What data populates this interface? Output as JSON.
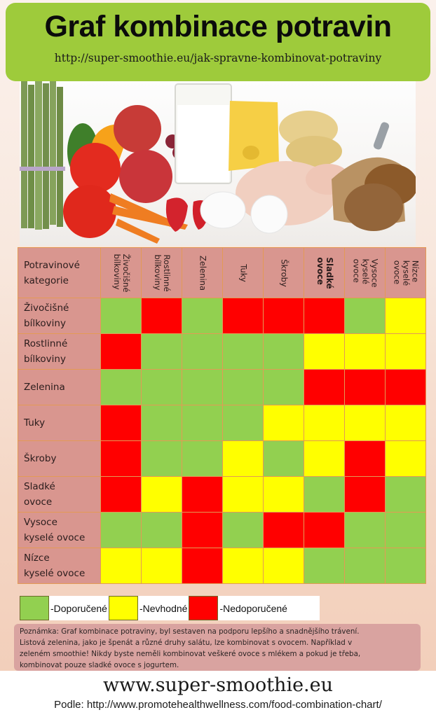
{
  "header": {
    "title": "Graf kombinace potravin",
    "url": "http://super-smoothie.eu/jak-spravne-kombinovat-potraviny"
  },
  "photo": {
    "alt": "Food photo: asparagus, tomatoes, apples, orange, grapes, strawberries, carrots, milk, cheese, eggs, chicken, pasta, grains, bread"
  },
  "colors": {
    "G": "#92d050",
    "Y": "#ffff00",
    "R": "#ff0000",
    "header_bg": "#d9968f",
    "banner": "#9ecb3b"
  },
  "table": {
    "corner_label": "Potravinové\nkategorie",
    "columns": [
      "Živočišné\nbílkoviny",
      "Rostlinné\nbílkoviny",
      "Zelenina",
      "Tuky",
      "Škroby",
      "Sladké\novoce",
      "Vysoce\nkyselé\novoce",
      "Nízce\nkyselé\novoce"
    ],
    "rows": [
      {
        "label": "Živočišné\nbílkoviny",
        "cells": [
          "G",
          "R",
          "G",
          "R",
          "R",
          "R",
          "G",
          "Y"
        ]
      },
      {
        "label": "Rostlinné\nbílkoviny",
        "cells": [
          "R",
          "G",
          "G",
          "G",
          "G",
          "Y",
          "Y",
          "Y"
        ]
      },
      {
        "label": "Zelenina",
        "cells": [
          "G",
          "G",
          "G",
          "G",
          "G",
          "R",
          "R",
          "R"
        ]
      },
      {
        "label": "Tuky",
        "cells": [
          "R",
          "G",
          "G",
          "G",
          "Y",
          "Y",
          "Y",
          "Y"
        ]
      },
      {
        "label": "Škroby",
        "cells": [
          "R",
          "G",
          "G",
          "Y",
          "G",
          "Y",
          "R",
          "Y"
        ]
      },
      {
        "label": "Sladké\novoce",
        "cells": [
          "R",
          "Y",
          "R",
          "Y",
          "Y",
          "G",
          "R",
          "G"
        ]
      },
      {
        "label": "Vysoce\nkyselé ovoce",
        "cells": [
          "G",
          "G",
          "R",
          "G",
          "R",
          "R",
          "G",
          "G"
        ]
      },
      {
        "label": "Nízce\nkyselé ovoce",
        "cells": [
          "Y",
          "Y",
          "R",
          "Y",
          "Y",
          "G",
          "G",
          "G"
        ]
      }
    ]
  },
  "legend": {
    "items": [
      {
        "key": "G",
        "label": "-Doporučené"
      },
      {
        "key": "Y",
        "label": "-Nevhodné"
      },
      {
        "key": "R",
        "label": "-Nedoporučené"
      }
    ]
  },
  "note": {
    "lines": [
      "Poznámka: Graf kombinace potraviny, byl sestaven na podporu lepšího a snadnějšího trávení.",
      "Listová zelenina, jako je špenát a různé druhy salátu, lze kombinovat s ovocem. Například v",
      "zeleném smoothie! Nikdy byste neměli kombinovat veškeré ovoce s mlékem a pokud je třeba,",
      "kombinovat pouze sladké ovoce s jogurtem."
    ]
  },
  "footer": {
    "site": "www.super-smoothie.eu",
    "source": "Podle: http://www.promotehealthwellness.com/food-combination-chart/"
  },
  "chart_data": {
    "type": "heatmap",
    "title": "Graf kombinace potravin",
    "subtitle": "http://super-smoothie.eu/jak-spravne-kombinovat-potraviny",
    "xlabel": "",
    "ylabel": "Potravinové kategorie",
    "x_categories": [
      "Živočišné bílkoviny",
      "Rostlinné bílkoviny",
      "Zelenina",
      "Tuky",
      "Škroby",
      "Sladké ovoce",
      "Vysoce kyselé ovoce",
      "Nízce kyselé ovoce"
    ],
    "y_categories": [
      "Živočišné bílkoviny",
      "Rostlinné bílkoviny",
      "Zelenina",
      "Tuky",
      "Škroby",
      "Sladké ovoce",
      "Vysoce kyselé ovoce",
      "Nízce kyselé ovoce"
    ],
    "value_legend": {
      "G": "Doporučené",
      "Y": "Nevhodné",
      "R": "Nedoporučené"
    },
    "values": [
      [
        "G",
        "R",
        "G",
        "R",
        "R",
        "R",
        "G",
        "Y"
      ],
      [
        "R",
        "G",
        "G",
        "G",
        "G",
        "Y",
        "Y",
        "Y"
      ],
      [
        "G",
        "G",
        "G",
        "G",
        "G",
        "R",
        "R",
        "R"
      ],
      [
        "R",
        "G",
        "G",
        "G",
        "Y",
        "Y",
        "Y",
        "Y"
      ],
      [
        "R",
        "G",
        "G",
        "Y",
        "G",
        "Y",
        "R",
        "Y"
      ],
      [
        "R",
        "Y",
        "R",
        "Y",
        "Y",
        "G",
        "R",
        "G"
      ],
      [
        "G",
        "G",
        "R",
        "G",
        "R",
        "R",
        "G",
        "G"
      ],
      [
        "Y",
        "Y",
        "R",
        "Y",
        "Y",
        "G",
        "G",
        "G"
      ]
    ],
    "legend_position": "bottom",
    "grid": true
  }
}
